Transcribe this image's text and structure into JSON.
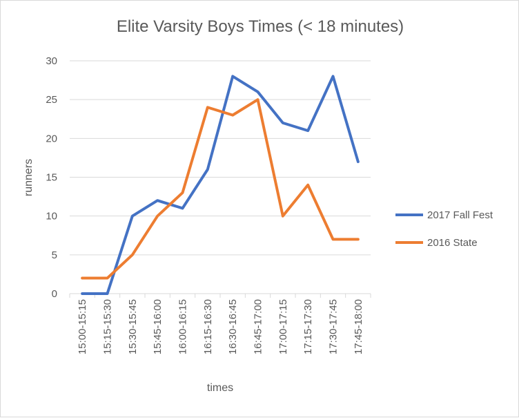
{
  "chart_data": {
    "type": "line",
    "title": "Elite Varsity Boys Times (< 18 minutes)",
    "xlabel": "times",
    "ylabel": "runners",
    "ylim": [
      0,
      30
    ],
    "yticks": [
      0,
      5,
      10,
      15,
      20,
      25,
      30
    ],
    "grid": true,
    "legend_position": "right",
    "categories": [
      "15:00-15:15",
      "15:15-15:30",
      "15:30-15:45",
      "15:45-16:00",
      "16:00-16:15",
      "16:15-16:30",
      "16:30-16:45",
      "16:45-17:00",
      "17:00-17:15",
      "17:15-17:30",
      "17:30-17:45",
      "17:45-18:00"
    ],
    "series": [
      {
        "name": "2017 Fall Fest",
        "color": "#4472c4",
        "values": [
          0,
          0,
          10,
          12,
          11,
          16,
          28,
          26,
          22,
          21,
          28,
          17
        ]
      },
      {
        "name": "2016 State",
        "color": "#ed7d31",
        "values": [
          2,
          2,
          5,
          10,
          13,
          24,
          23,
          25,
          10,
          14,
          7,
          7
        ]
      }
    ]
  }
}
